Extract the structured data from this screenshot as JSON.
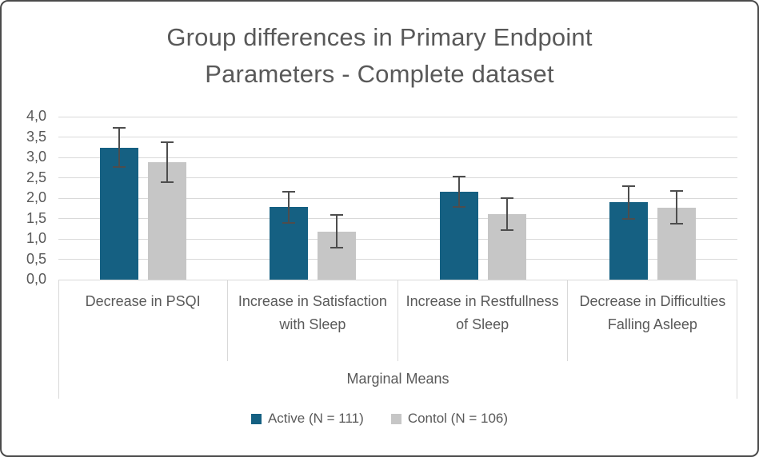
{
  "chart_data": {
    "type": "bar",
    "title": "Group differences in Primary Endpoint Parameters - Complete dataset",
    "title_lines": [
      "Group differences in Primary Endpoint",
      "Parameters - Complete dataset"
    ],
    "categories": [
      "Decrease in PSQI",
      "Increase in Satisfaction with Sleep",
      "Increase in Restfullness of Sleep",
      "Decrease in Difficulties Falling Asleep"
    ],
    "axis_group_label": "Marginal Means",
    "series": [
      {
        "name": "Active (N = 111)",
        "color": "#156082",
        "values": [
          3.24,
          1.78,
          2.15,
          1.9
        ],
        "errors": [
          0.48,
          0.38,
          0.37,
          0.4
        ]
      },
      {
        "name": "Contol (N = 106)",
        "color": "#c6c6c6",
        "values": [
          2.88,
          1.18,
          1.61,
          1.77
        ],
        "errors": [
          0.49,
          0.4,
          0.39,
          0.4
        ]
      }
    ],
    "ylim": [
      0,
      4
    ],
    "y_tick_step": 0.5,
    "y_tick_labels": [
      "0,0",
      "0,5",
      "1,0",
      "1,5",
      "2,0",
      "2,5",
      "3,0",
      "3,5",
      "4,0"
    ],
    "decimal_separator": ",",
    "grid": true,
    "legend_position": "bottom",
    "colors": {
      "text": "#595959",
      "gridline": "#d9d9d9",
      "error_bar": "#4d4d4d",
      "frame_border": "#4a4a4a"
    }
  }
}
